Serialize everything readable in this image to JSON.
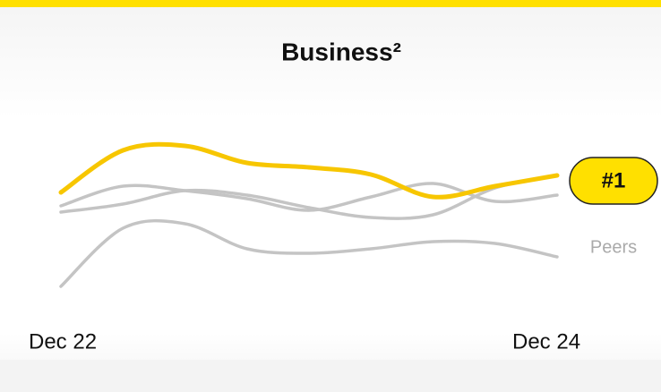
{
  "chart_data": {
    "type": "line",
    "title": "Business²",
    "categories": [
      "Dec 22",
      null,
      null,
      null,
      null,
      null,
      null,
      null,
      "Dec 24"
    ],
    "series": [
      {
        "color": "#c4c4c4",
        "values": [
          10,
          75,
          80,
          52,
          47,
          52,
          60,
          58,
          43
        ]
      },
      {
        "color": "#c4c4c4",
        "values": [
          100,
          122,
          117,
          108,
          95,
          110,
          125,
          105,
          112
        ]
      },
      {
        "color": "#c4c4c4",
        "values": [
          93,
          102,
          117,
          112,
          98,
          87,
          90,
          120,
          134
        ]
      },
      {
        "color": "#f7c600",
        "values": [
          115,
          162,
          167,
          148,
          143,
          135,
          110,
          122,
          134
        ]
      }
    ],
    "ylim": [
      0,
      190
    ],
    "annotations": {
      "badge": "#1",
      "peers_label": "Peers"
    }
  }
}
